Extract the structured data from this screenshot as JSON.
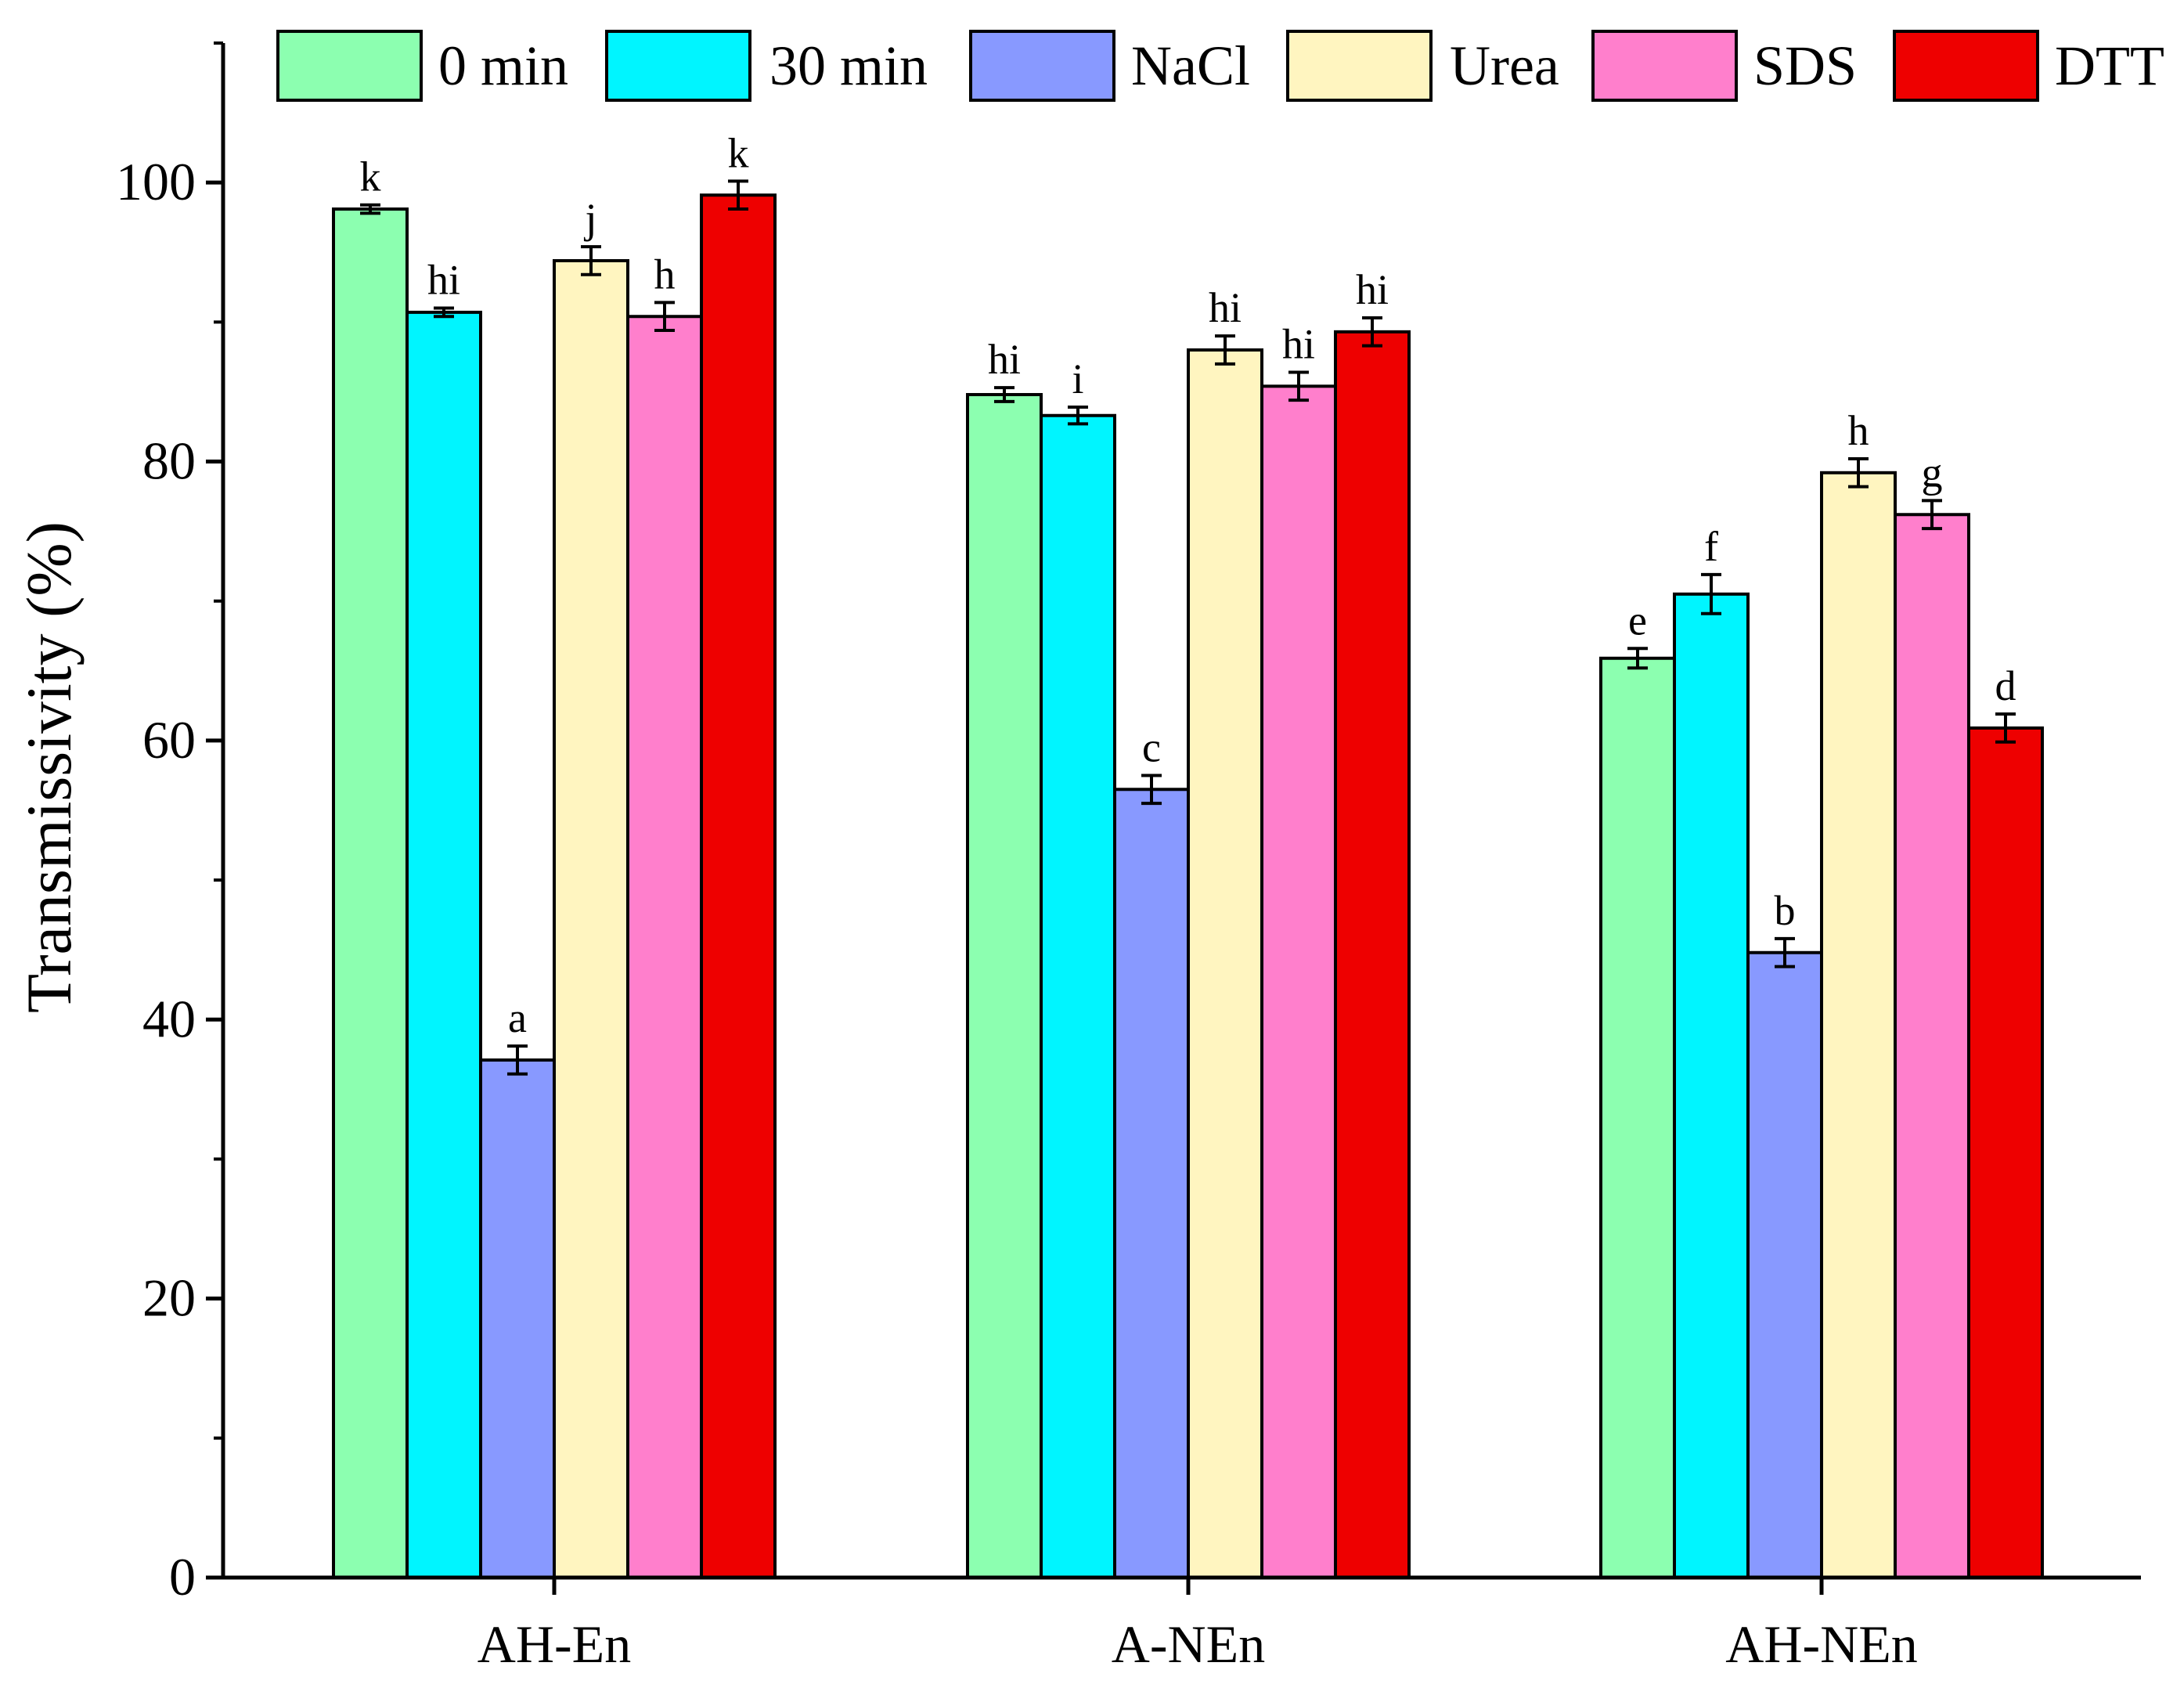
{
  "chart_data": {
    "type": "bar",
    "title": "",
    "xlabel": "",
    "ylabel": "Transmissivity (%)",
    "ylim": [
      0,
      110
    ],
    "yticks": [
      "0",
      "20",
      "40",
      "60",
      "80",
      "100"
    ],
    "categories": [
      "AH-En",
      "A-NEn",
      "AH-NEn"
    ],
    "legend_position": "top",
    "grid": false,
    "series": [
      {
        "name": "0 min",
        "color": "#8CFFB0",
        "values": [
          98.1,
          84.8,
          65.9
        ],
        "errors": [
          0.3,
          0.5,
          0.7
        ],
        "labels": [
          "k",
          "hi",
          "e"
        ]
      },
      {
        "name": "30 min",
        "color": "#00F5FF",
        "values": [
          90.7,
          83.3,
          70.5
        ],
        "errors": [
          0.3,
          0.6,
          1.4
        ],
        "labels": [
          "hi",
          "i",
          "f"
        ]
      },
      {
        "name": "NaCl",
        "color": "#8899FF",
        "values": [
          37.1,
          56.5,
          44.8
        ],
        "errors": [
          1.0,
          1.0,
          1.0
        ],
        "labels": [
          "a",
          "c",
          "b"
        ]
      },
      {
        "name": "Urea",
        "color": "#FFF5C0",
        "values": [
          94.4,
          88.0,
          79.2
        ],
        "errors": [
          1.0,
          1.0,
          1.0
        ],
        "labels": [
          "j",
          "hi",
          "h"
        ]
      },
      {
        "name": "SDS",
        "color": "#FF7FCC",
        "values": [
          90.4,
          85.4,
          76.2
        ],
        "errors": [
          1.0,
          1.0,
          1.0
        ],
        "labels": [
          "h",
          "hi",
          "g"
        ]
      },
      {
        "name": "DTT",
        "color": "#EE0000",
        "values": [
          99.1,
          89.3,
          60.9
        ],
        "errors": [
          1.0,
          1.0,
          1.0
        ],
        "labels": [
          "k",
          "hi",
          "d"
        ]
      }
    ]
  }
}
